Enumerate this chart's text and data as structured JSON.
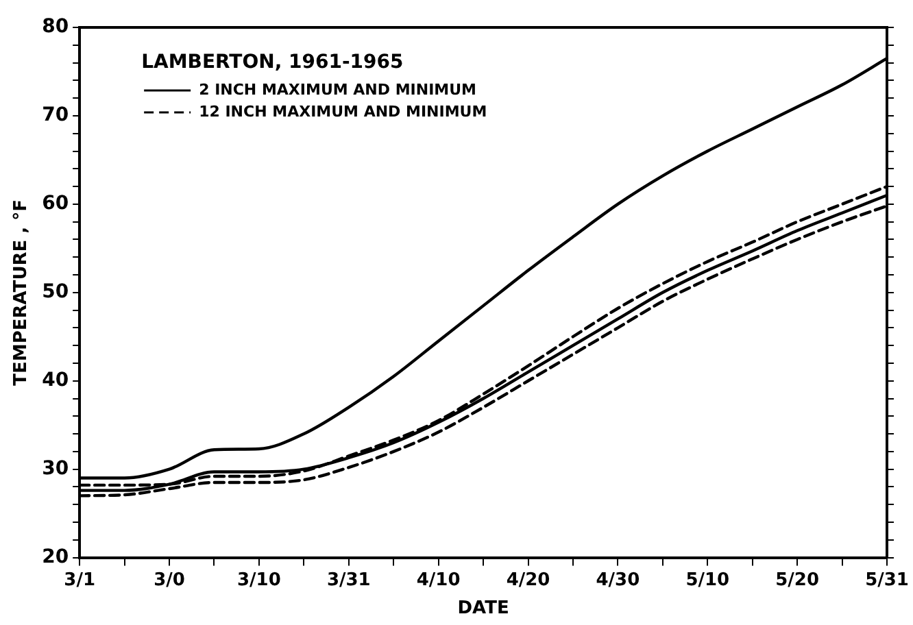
{
  "chart_data": {
    "type": "line",
    "xlabel": "DATE",
    "ylabel": "TEMPERATURE , °F",
    "legend_title": "LAMBERTON, 1961-1965",
    "legend": "top left",
    "grid": false,
    "marker": "none",
    "categories": [
      "3/1",
      null,
      "3/0",
      null,
      "3/10",
      null,
      "3/31",
      null,
      "4/10",
      null,
      "4/20",
      null,
      "4/30",
      null,
      "5/10",
      null,
      "5/20",
      null,
      "5/31"
    ],
    "ylim": [
      20,
      80
    ],
    "yticks": [
      20,
      {
        "value": 22,
        "label": null
      },
      {
        "value": 24,
        "label": null
      },
      {
        "value": 26,
        "label": null
      },
      {
        "value": 28,
        "label": null
      },
      30,
      {
        "value": 32,
        "label": null
      },
      {
        "value": 34,
        "label": null
      },
      {
        "value": 36,
        "label": null
      },
      {
        "value": 38,
        "label": null
      },
      40,
      {
        "value": 42,
        "label": null
      },
      {
        "value": 44,
        "label": null
      },
      {
        "value": 46,
        "label": null
      },
      {
        "value": 48,
        "label": null
      },
      50,
      {
        "value": 52,
        "label": null
      },
      {
        "value": 54,
        "label": null
      },
      {
        "value": 56,
        "label": null
      },
      {
        "value": 58,
        "label": null
      },
      60,
      {
        "value": 62,
        "label": null
      },
      {
        "value": 64,
        "label": null
      },
      {
        "value": 66,
        "label": null
      },
      {
        "value": 68,
        "label": null
      },
      70,
      {
        "value": 72,
        "label": null
      },
      {
        "value": 74,
        "label": null
      },
      {
        "value": 76,
        "label": null
      },
      {
        "value": 78,
        "label": null
      },
      80
    ],
    "series": [
      {
        "name": "2 INCH MAXIMUM AND MINIMUM",
        "color": "#000000",
        "line_style": "solid",
        "values": [
          29,
          29,
          30,
          32.2,
          32.3,
          34,
          37,
          40.5,
          44.5,
          48.5,
          52.5,
          56.3,
          60,
          63.2,
          66,
          68.5,
          71,
          73.5,
          76.5
        ]
      },
      {
        "color": "#000000",
        "line_style": "solid",
        "values": [
          27.6,
          27.6,
          28.3,
          29.7,
          29.7,
          30,
          31.3,
          33,
          35.3,
          38,
          41,
          44,
          47,
          50,
          52.5,
          54.7,
          57,
          59,
          61
        ]
      },
      {
        "name": "12 INCH MAXIMUM AND MINIMUM",
        "color": "#000000",
        "line_style": "dashed",
        "values": [
          28.2,
          28.2,
          28.3,
          29.2,
          29.2,
          29.8,
          31.5,
          33.3,
          35.5,
          38.5,
          41.7,
          45,
          48.2,
          51,
          53.5,
          55.7,
          58,
          60,
          62
        ]
      },
      {
        "color": "#000000",
        "line_style": "dashed",
        "values": [
          27,
          27.1,
          27.8,
          28.5,
          28.5,
          28.8,
          30.2,
          32,
          34.2,
          37,
          40,
          43,
          46,
          49,
          51.5,
          53.8,
          56,
          58,
          59.8
        ]
      }
    ]
  }
}
